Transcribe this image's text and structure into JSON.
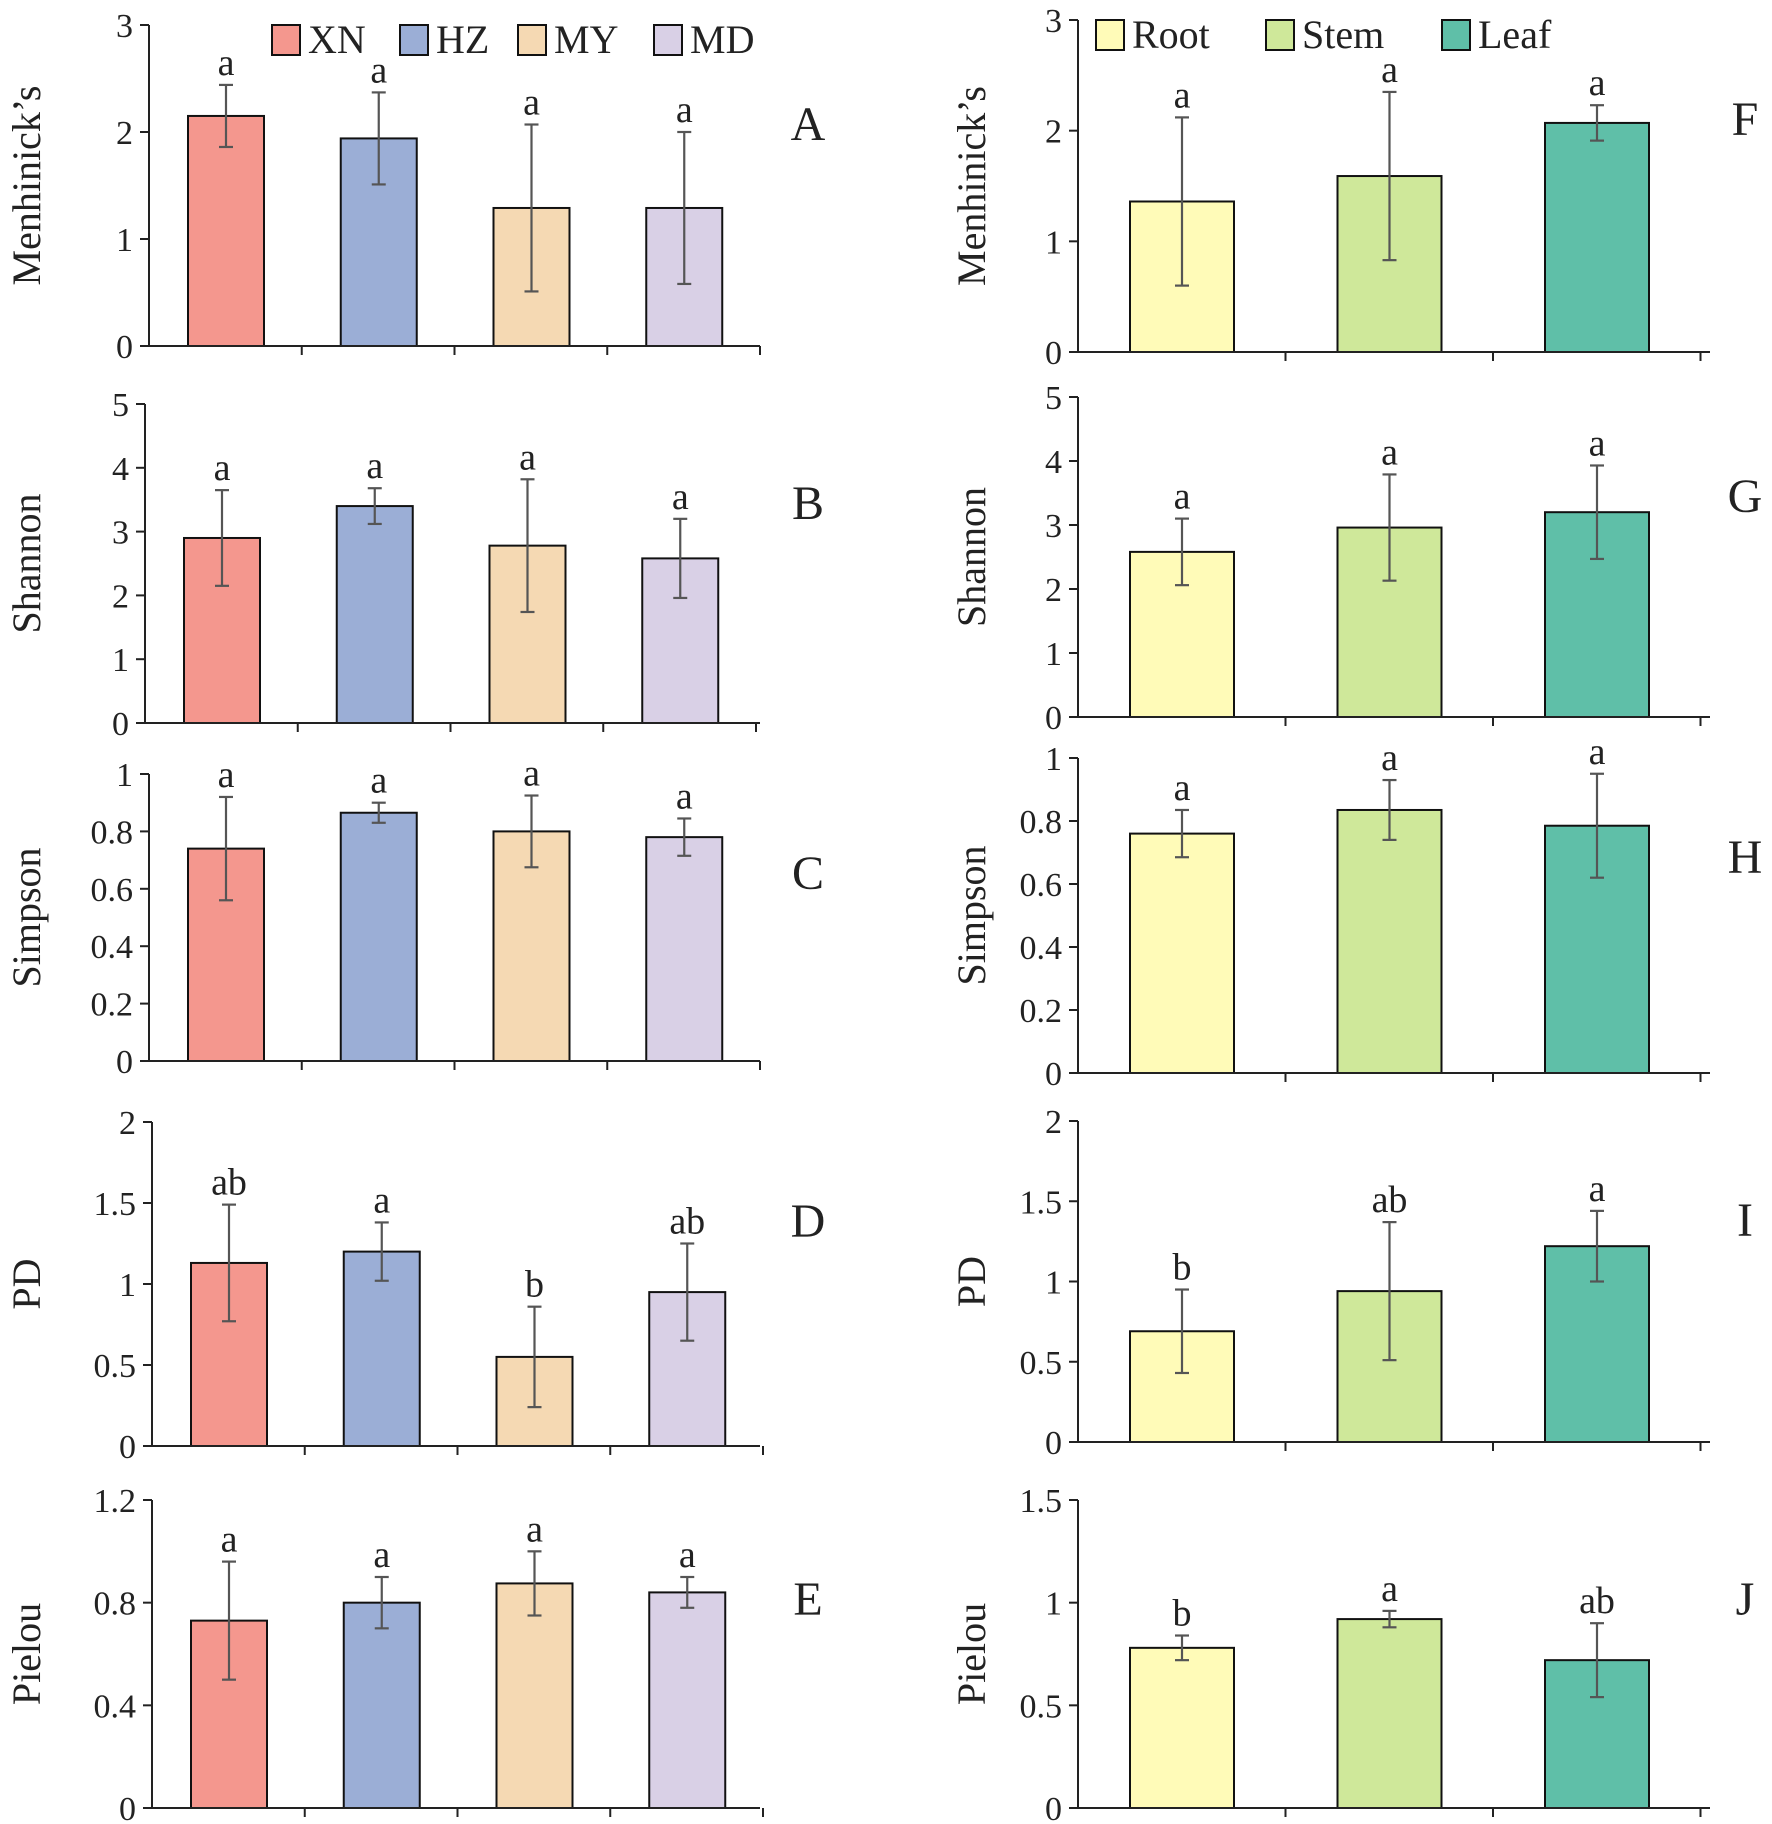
{
  "colors": {
    "XN": "#F4978E",
    "HZ": "#9BAED6",
    "MY": "#F5D9B3",
    "MD": "#D9D0E6",
    "Root": "#FFFBB8",
    "Stem": "#CFE89A",
    "Leaf": "#5FBFA8",
    "bar_outline": "#111111",
    "axis": "#222222",
    "error_bar": "#555555"
  },
  "legends": {
    "left": [
      "XN",
      "HZ",
      "MY",
      "MD"
    ],
    "right": [
      "Root",
      "Stem",
      "Leaf"
    ]
  },
  "chart_data": [
    {
      "type": "bar",
      "panel": "A",
      "column": "left",
      "categories": [
        "XN",
        "HZ",
        "MY",
        "MD"
      ],
      "values": [
        2.15,
        1.94,
        1.29,
        1.29
      ],
      "errors": [
        0.29,
        0.43,
        0.78,
        0.71
      ],
      "letters": [
        "a",
        "a",
        "a",
        "a"
      ],
      "ylabel": "Menhinick’s",
      "ylim": [
        0,
        3
      ],
      "yticks": [
        0,
        1,
        2,
        3
      ],
      "ytick_labels": [
        "0",
        "1",
        "2",
        "3"
      ]
    },
    {
      "type": "bar",
      "panel": "B",
      "column": "left",
      "categories": [
        "XN",
        "HZ",
        "MY",
        "MD"
      ],
      "values": [
        2.9,
        3.4,
        2.78,
        2.58
      ],
      "errors": [
        0.75,
        0.28,
        1.04,
        0.62
      ],
      "letters": [
        "a",
        "a",
        "a",
        "a"
      ],
      "ylabel": "Shannon",
      "ylim": [
        0,
        5
      ],
      "yticks": [
        0,
        1,
        2,
        3,
        4,
        5
      ],
      "ytick_labels": [
        "0",
        "1",
        "2",
        "3",
        "4",
        "5"
      ]
    },
    {
      "type": "bar",
      "panel": "C",
      "column": "left",
      "categories": [
        "XN",
        "HZ",
        "MY",
        "MD"
      ],
      "values": [
        0.74,
        0.865,
        0.8,
        0.78
      ],
      "errors": [
        0.18,
        0.035,
        0.125,
        0.065
      ],
      "letters": [
        "a",
        "a",
        "a",
        "a"
      ],
      "ylabel": "Simpson",
      "ylim": [
        0,
        1
      ],
      "yticks": [
        0,
        0.2,
        0.4,
        0.6,
        0.8,
        1
      ],
      "ytick_labels": [
        "0",
        "0.2",
        "0.4",
        "0.6",
        "0.8",
        "1"
      ]
    },
    {
      "type": "bar",
      "panel": "D",
      "column": "left",
      "categories": [
        "XN",
        "HZ",
        "MY",
        "MD"
      ],
      "values": [
        1.13,
        1.2,
        0.55,
        0.95
      ],
      "errors": [
        0.36,
        0.18,
        0.31,
        0.3
      ],
      "letters": [
        "ab",
        "a",
        "b",
        "ab"
      ],
      "ylabel": "PD",
      "ylim": [
        0,
        2
      ],
      "yticks": [
        0,
        0.5,
        1,
        1.5,
        2
      ],
      "ytick_labels": [
        "0",
        "0.5",
        "1",
        "1.5",
        "2"
      ]
    },
    {
      "type": "bar",
      "panel": "E",
      "column": "left",
      "categories": [
        "XN",
        "HZ",
        "MY",
        "MD"
      ],
      "values": [
        0.73,
        0.8,
        0.875,
        0.84
      ],
      "errors": [
        0.23,
        0.1,
        0.125,
        0.06
      ],
      "letters": [
        "a",
        "a",
        "a",
        "a"
      ],
      "ylabel": "Pielou",
      "ylim": [
        0,
        1.2
      ],
      "yticks": [
        0,
        0.4,
        0.8,
        1.2
      ],
      "ytick_labels": [
        "0",
        "0.4",
        "0.8",
        "1.2"
      ]
    },
    {
      "type": "bar",
      "panel": "F",
      "column": "right",
      "categories": [
        "Root",
        "Stem",
        "Leaf"
      ],
      "values": [
        1.36,
        1.59,
        2.07
      ],
      "errors": [
        0.76,
        0.76,
        0.16
      ],
      "letters": [
        "a",
        "a",
        "a"
      ],
      "ylabel": "Menhinick’s",
      "ylim": [
        0,
        3
      ],
      "yticks": [
        0,
        1,
        2,
        3
      ],
      "ytick_labels": [
        "0",
        "1",
        "2",
        "3"
      ]
    },
    {
      "type": "bar",
      "panel": "G",
      "column": "right",
      "categories": [
        "Root",
        "Stem",
        "Leaf"
      ],
      "values": [
        2.58,
        2.96,
        3.2
      ],
      "errors": [
        0.52,
        0.83,
        0.73
      ],
      "letters": [
        "a",
        "a",
        "a"
      ],
      "ylabel": "Shannon",
      "ylim": [
        0,
        5
      ],
      "yticks": [
        0,
        1,
        2,
        3,
        4,
        5
      ],
      "ytick_labels": [
        "0",
        "1",
        "2",
        "3",
        "4",
        "5"
      ]
    },
    {
      "type": "bar",
      "panel": "H",
      "column": "right",
      "categories": [
        "Root",
        "Stem",
        "Leaf"
      ],
      "values": [
        0.76,
        0.835,
        0.785
      ],
      "errors": [
        0.075,
        0.095,
        0.165
      ],
      "letters": [
        "a",
        "a",
        "a"
      ],
      "ylabel": "Simpson",
      "ylim": [
        0,
        1
      ],
      "yticks": [
        0,
        0.2,
        0.4,
        0.6,
        0.8,
        1
      ],
      "ytick_labels": [
        "0",
        "0.2",
        "0.4",
        "0.6",
        "0.8",
        "1"
      ]
    },
    {
      "type": "bar",
      "panel": "I",
      "column": "right",
      "categories": [
        "Root",
        "Stem",
        "Leaf"
      ],
      "values": [
        0.69,
        0.94,
        1.22
      ],
      "errors": [
        0.26,
        0.43,
        0.22
      ],
      "letters": [
        "b",
        "ab",
        "a"
      ],
      "ylabel": "PD",
      "ylim": [
        0,
        2
      ],
      "yticks": [
        0,
        0.5,
        1,
        1.5,
        2
      ],
      "ytick_labels": [
        "0",
        "0.5",
        "1",
        "1.5",
        "2"
      ]
    },
    {
      "type": "bar",
      "panel": "J",
      "column": "right",
      "categories": [
        "Root",
        "Stem",
        "Leaf"
      ],
      "values": [
        0.78,
        0.92,
        0.72
      ],
      "errors": [
        0.06,
        0.04,
        0.18
      ],
      "letters": [
        "b",
        "a",
        "ab"
      ],
      "ylabel": "Pielou",
      "ylim": [
        0,
        1.5
      ],
      "yticks": [
        0,
        0.5,
        1,
        1.5
      ],
      "ytick_labels": [
        "0",
        "0.5",
        "1",
        "1.5"
      ]
    }
  ]
}
